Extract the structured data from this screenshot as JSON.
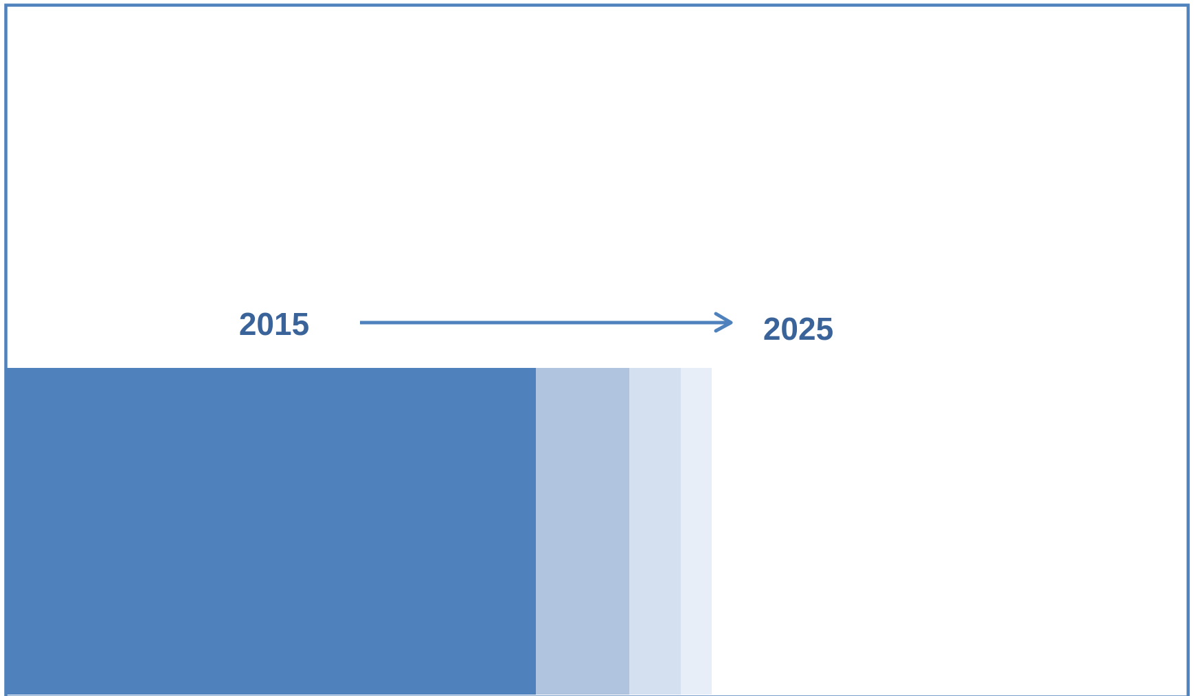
{
  "labels": {
    "start": "2015",
    "end": "2025"
  }
}
